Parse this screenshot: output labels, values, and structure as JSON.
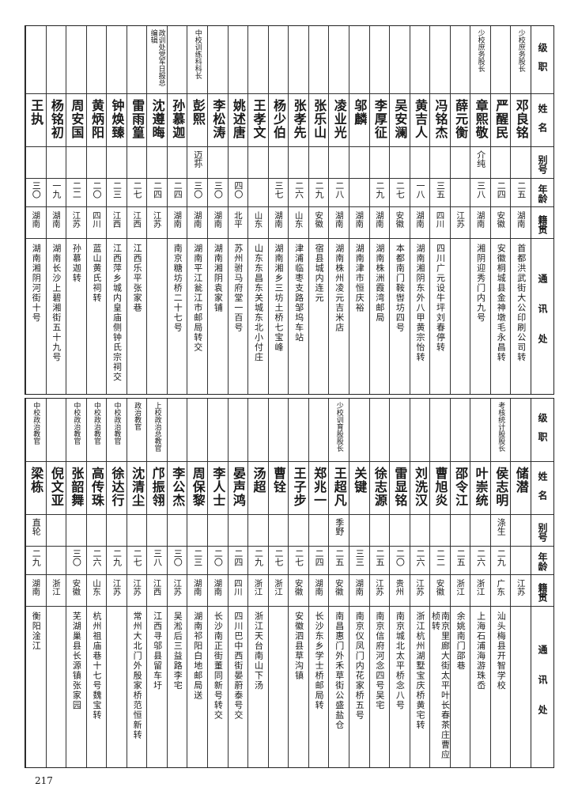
{
  "headers": {
    "rank": "级职",
    "name": "姓名",
    "alias": "别号",
    "age": "年龄",
    "origin": "籍贯",
    "address": "通讯处"
  },
  "page_number": "217",
  "bands": [
    {
      "people": [
        {
          "rank": "少校庶务股长",
          "name": "邓良铭",
          "alias": "",
          "age": "二五",
          "origin": "湖南",
          "address": "首都洪武街大公印刷公司转"
        },
        {
          "rank": "",
          "name": "严醒民",
          "alias": "",
          "age": "二四",
          "origin": "安徽",
          "address": "安徽桐城县金神墩毛永昌转"
        },
        {
          "rank": "少校庶务股长",
          "name": "章熙敬",
          "alias": "介纯",
          "age": "三八",
          "origin": "湖南",
          "address": "湘阴迎秀门内九号"
        },
        {
          "rank": "",
          "name": "薛元衡",
          "alias": "",
          "age": "",
          "origin": "江苏",
          "address": ""
        },
        {
          "rank": "",
          "name": "冯铭杰",
          "alias": "",
          "age": "三五",
          "origin": "四川",
          "address": "四川广元设牛坪刘春停转"
        },
        {
          "rank": "",
          "name": "黄吉人",
          "alias": "",
          "age": "一八",
          "origin": "湖南",
          "address": "湖南湘阴东外八甲黄宗怡转"
        },
        {
          "rank": "",
          "name": "吴安澜",
          "alias": "",
          "age": "二七",
          "origin": "安徽",
          "address": "本都南门鞍辔坊四号"
        },
        {
          "rank": "",
          "name": "李厚征",
          "alias": "",
          "age": "二九",
          "origin": "湖南",
          "address": "湖南株洲霞湾邮局"
        },
        {
          "rank": "",
          "name": "邬麟",
          "alias": "",
          "age": "",
          "origin": "湖南",
          "address": "湖南津市恒庆裕"
        },
        {
          "rank": "",
          "name": "凌业光",
          "alias": "",
          "age": "二八",
          "origin": "湖南",
          "address": "湖南株州凌元吉米店"
        },
        {
          "rank": "",
          "name": "张乐山",
          "alias": "",
          "age": "二九",
          "origin": "安徽",
          "address": "宿县城内连元"
        },
        {
          "rank": "",
          "name": "张孝先",
          "alias": "",
          "age": "二六",
          "origin": "山东",
          "address": "津浦临枣支路邹坞车站"
        },
        {
          "rank": "",
          "name": "杨少伯",
          "alias": "",
          "age": "三七",
          "origin": "湖南",
          "address": "湖南湘乡三坊土桥七宝峰"
        },
        {
          "rank": "",
          "name": "王孝文",
          "alias": "",
          "age": "",
          "origin": "山东",
          "address": "山东东昌东关城东北小付庄"
        },
        {
          "rank": "",
          "name": "姚述唐",
          "alias": "",
          "age": "四〇",
          "origin": "北平",
          "address": "苏州驸马府堂一百号"
        },
        {
          "rank": "",
          "name": "李松涛",
          "alias": "",
          "age": "三〇",
          "origin": "湖南",
          "address": "湖南湘阴袁家铺"
        },
        {
          "rank": "中校训练科科长",
          "name": "彭熙",
          "alias": "迈荪",
          "age": "三〇",
          "origin": "湖南",
          "address": "湖南平江瓮江市邮局转交"
        },
        {
          "rank": "",
          "name": "孙慕迦",
          "alias": "",
          "age": "二四",
          "origin": "湖南",
          "address": "南京糖坊桥二十七号"
        },
        {
          "rank": "政训处党军日报总编辑",
          "name": "沈遵晦",
          "alias": "",
          "age": "二四",
          "origin": "江苏",
          "address": ""
        },
        {
          "rank": "",
          "name": "雷雨篁",
          "alias": "",
          "age": "二七",
          "origin": "江西",
          "address": "江西乐平张家巷"
        },
        {
          "rank": "",
          "name": "钟焕臻",
          "alias": "",
          "age": "二三",
          "origin": "江西",
          "address": "江西萍乡城内皇庙侧钟氏宗祠交"
        },
        {
          "rank": "",
          "name": "黄炳阳",
          "alias": "",
          "age": "二〇",
          "origin": "四川",
          "address": "蓝山黄氏祠转"
        },
        {
          "rank": "",
          "name": "周安国",
          "alias": "",
          "age": "二二",
          "origin": "江苏",
          "address": "孙慕迦转"
        },
        {
          "rank": "",
          "name": "杨铭初",
          "alias": "",
          "age": "一九",
          "origin": "湖南",
          "address": "湖南长沙上碧湘街五十九号"
        },
        {
          "rank": "",
          "name": "王执",
          "alias": "",
          "age": "三〇",
          "origin": "湖南",
          "address": "湖南湘阴河街十号"
        }
      ]
    },
    {
      "people": [
        {
          "rank": "",
          "name": "储潜",
          "alias": "",
          "age": "",
          "origin": "江苏",
          "address": ""
        },
        {
          "rank": "考核统计股股长",
          "name": "侯志明",
          "alias": "涤生",
          "age": "二九",
          "origin": "广东",
          "address": "汕头梅县开智学校"
        },
        {
          "rank": "",
          "name": "叶崇统",
          "alias": "",
          "age": "二六",
          "origin": "浙江",
          "address": "上海石浦海游珠岙"
        },
        {
          "rank": "",
          "name": "邵令江",
          "alias": "",
          "age": "二五",
          "origin": "浙江",
          "address": "余姚南门邵巷"
        },
        {
          "rank": "",
          "name": "曹旭炎",
          "alias": "",
          "age": "二二",
          "origin": "安徽",
          "address": "南京里廊大街太平叶长春茶庄曹应桢转"
        },
        {
          "rank": "",
          "name": "刘洗汉",
          "alias": "",
          "age": "二六",
          "origin": "江苏",
          "address": "浙江杭州湖墅宝庆桥黄宅转"
        },
        {
          "rank": "",
          "name": "雷显铭",
          "alias": "",
          "age": "二〇",
          "origin": "贵州",
          "address": "南京城北太平桥念八号"
        },
        {
          "rank": "",
          "name": "徐志源",
          "alias": "",
          "age": "二五",
          "origin": "江苏",
          "address": "南京信府河念四号吴宅"
        },
        {
          "rank": "",
          "name": "关键",
          "alias": "",
          "age": "三三",
          "origin": "湖南",
          "address": "南京仪凤门内花家桥五号"
        },
        {
          "rank": "少校训育股股长",
          "name": "王超凡",
          "alias": "季野",
          "age": "二五",
          "origin": "安徽",
          "address": "南昌惠门外禾草街公盛盐仓"
        },
        {
          "rank": "",
          "name": "郑兆一",
          "alias": "",
          "age": "二四",
          "origin": "湖南",
          "address": "长沙东乡学士桥邮局转"
        },
        {
          "rank": "",
          "name": "王子步",
          "alias": "",
          "age": "二七",
          "origin": "安徽",
          "address": "安徽泗县草沟镇"
        },
        {
          "rank": "",
          "name": "曹铨",
          "alias": "",
          "age": "二七",
          "origin": "浙江",
          "address": ""
        },
        {
          "rank": "",
          "name": "汤超",
          "alias": "",
          "age": "二九",
          "origin": "浙江",
          "address": "浙江天台南山下汤"
        },
        {
          "rank": "",
          "name": "晏声鸿",
          "alias": "",
          "age": "二四",
          "origin": "四川",
          "address": "四川巴中西街晏蔚泰号交"
        },
        {
          "rank": "",
          "name": "李人士",
          "alias": "",
          "age": "二〇",
          "origin": "湖南",
          "address": "长沙南正街董同新号转交"
        },
        {
          "rank": "",
          "name": "周保黎",
          "alias": "",
          "age": "二三",
          "origin": "湖南",
          "address": "湖南祁阳白地邮局送"
        },
        {
          "rank": "",
          "name": "李公杰",
          "alias": "",
          "age": "三〇",
          "origin": "江苏",
          "address": "吴淞后三益路李宅"
        },
        {
          "rank": "上校政治总教官",
          "name": "邝振翎",
          "alias": "",
          "age": "三八",
          "origin": "江西",
          "address": "江西寻邬县留车圩"
        },
        {
          "rank": "政治教官",
          "name": "沈清尘",
          "alias": "",
          "age": "二七",
          "origin": "江苏",
          "address": "常州大北门外殷家桥范恒新转"
        },
        {
          "rank": "中校政治教官",
          "name": "徐达行",
          "alias": "",
          "age": "二九",
          "origin": "江苏",
          "address": ""
        },
        {
          "rank": "中校政治教官",
          "name": "高传珠",
          "alias": "",
          "age": "二六",
          "origin": "山东",
          "address": "杭州祖庙巷十七号魏宝转"
        },
        {
          "rank": "中校政治教官",
          "name": "张韶舞",
          "alias": "",
          "age": "三〇",
          "origin": "安徽",
          "address": "芜湖巢县长源镇张家园"
        },
        {
          "rank": "",
          "name": "倪文亚",
          "alias": "",
          "age": "",
          "origin": "浙江",
          "address": ""
        },
        {
          "rank": "中校政治教官",
          "name": "梁栋",
          "alias": "直轮",
          "age": "二九",
          "origin": "湖南",
          "address": "衡阳淦江"
        }
      ]
    }
  ]
}
